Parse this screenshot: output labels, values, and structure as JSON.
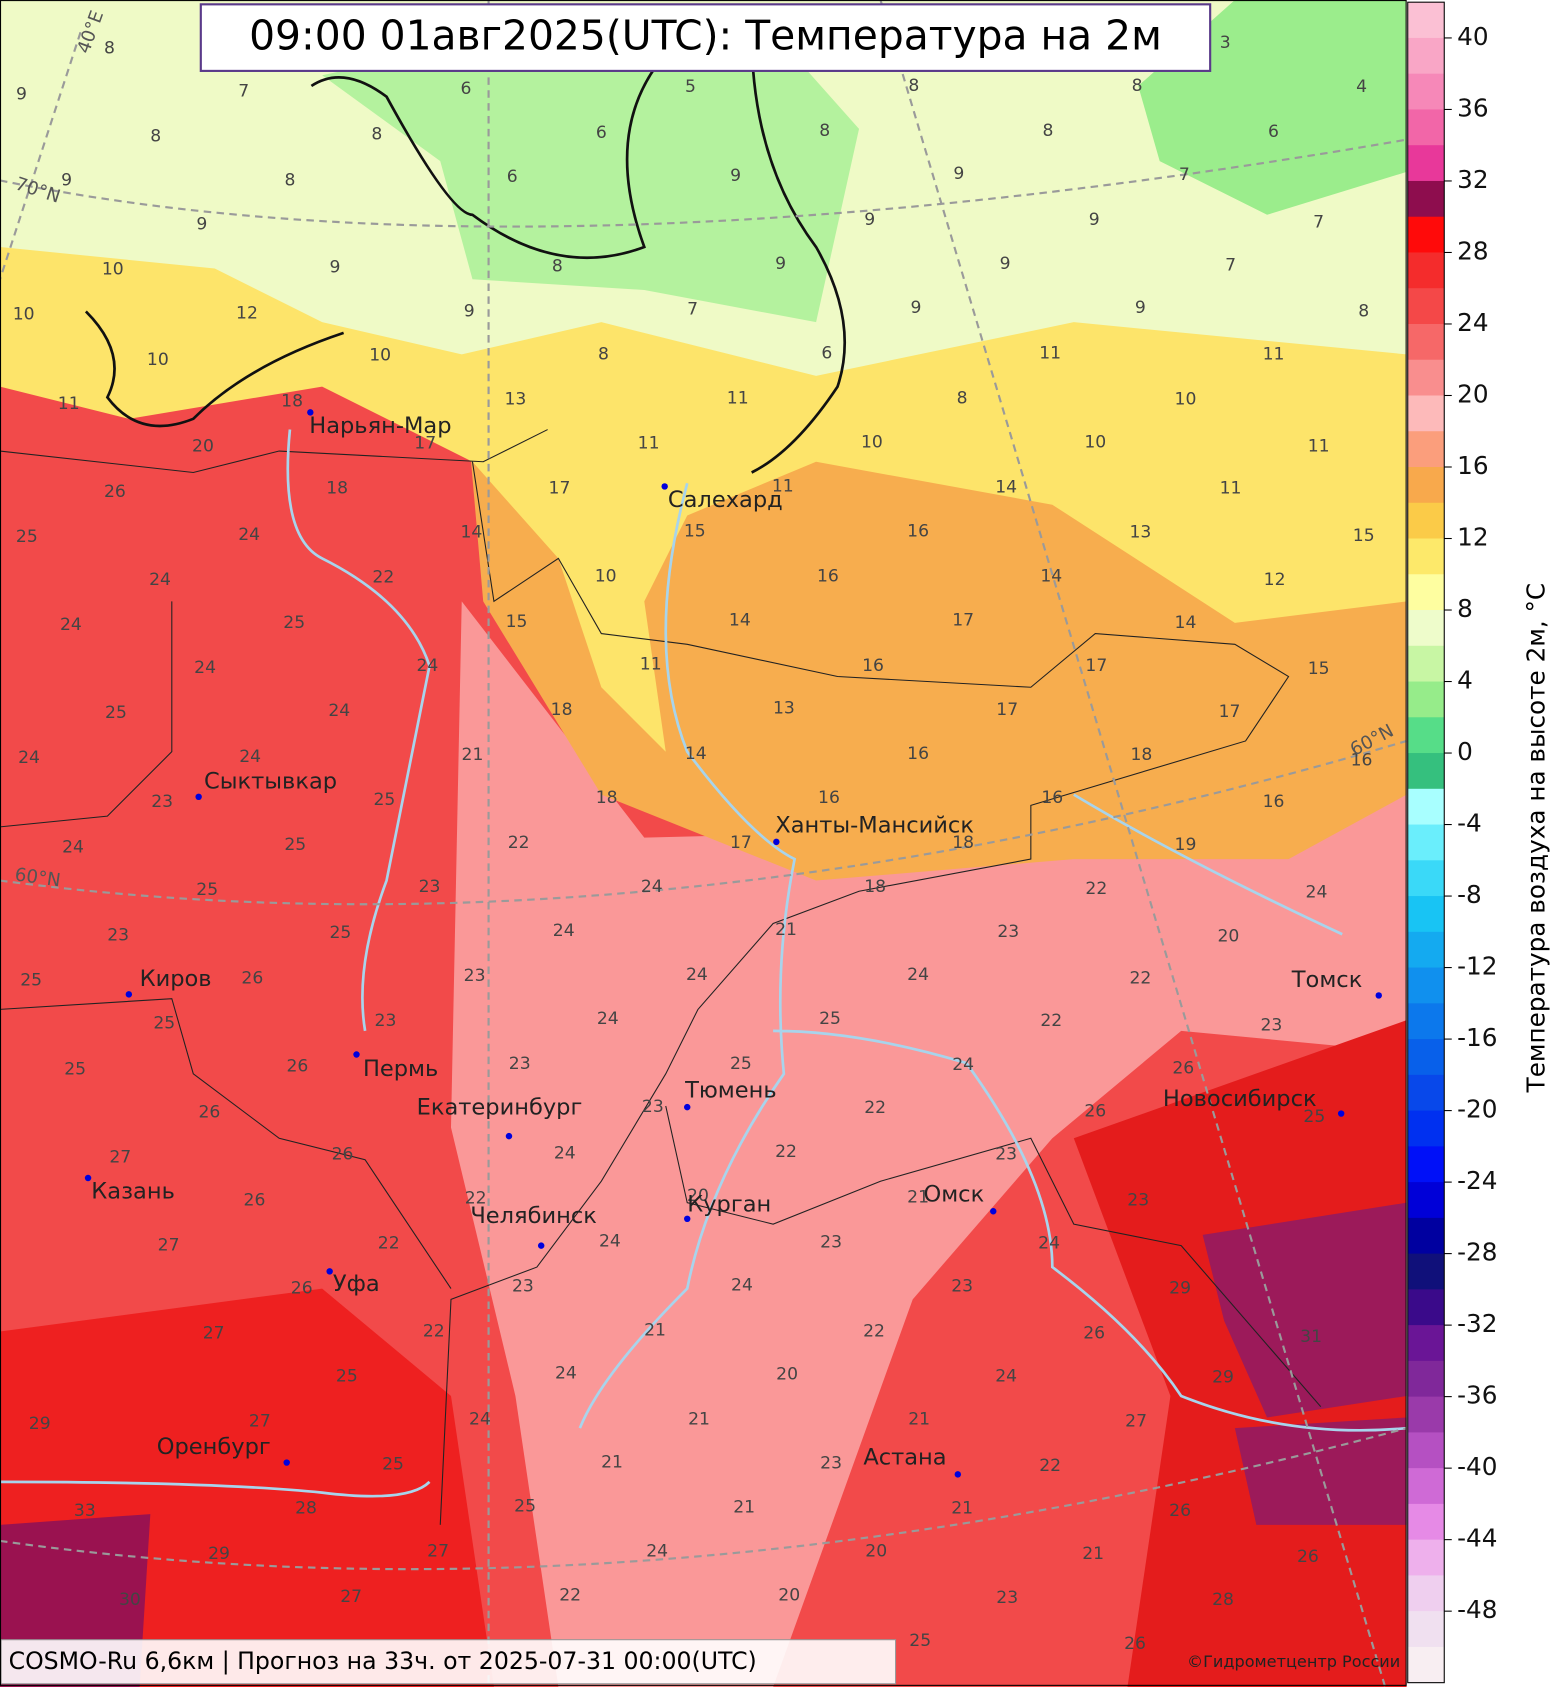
{
  "title": "09:00 01авг2025(UTC): Температура на 2м",
  "footer": "COSMO-Ru 6,6км | Прогноз на  33ч. от 2025-07-31 00:00(UTC)",
  "copyright": "©Гидрометцентр России",
  "graticule_labels": [
    "40°E",
    "70°N",
    "60°N",
    "60°N"
  ],
  "cities": [
    "Нарьян-Мар",
    "Салехард",
    "Сыктывкар",
    "Ханты-Мансийск",
    "Киров",
    "Томск",
    "Пермь",
    "Тюмень",
    "Екатеринбург",
    "Новосибирск",
    "Казань",
    "Омск",
    "Курган",
    "Челябинск",
    "Уфа",
    "Оренбург",
    "Астана"
  ],
  "temperatures": [
    8,
    9,
    7,
    6,
    5,
    8,
    8,
    4,
    3,
    8,
    8,
    6,
    8,
    8,
    6,
    9,
    8,
    6,
    9,
    9,
    7,
    9,
    9,
    9,
    7,
    10,
    9,
    8,
    9,
    9,
    7,
    10,
    12,
    9,
    7,
    9,
    9,
    8,
    10,
    10,
    8,
    6,
    11,
    11,
    11,
    18,
    13,
    11,
    8,
    10,
    20,
    17,
    11,
    10,
    10,
    11,
    26,
    18,
    17,
    11,
    14,
    11,
    25,
    24,
    14,
    15,
    16,
    13,
    15,
    24,
    22,
    10,
    16,
    14,
    12,
    24,
    25,
    15,
    14,
    17,
    14,
    24,
    24,
    11,
    16,
    17,
    15,
    25,
    24,
    18,
    13,
    17,
    17,
    24,
    24,
    21,
    14,
    16,
    18,
    16,
    23,
    25,
    18,
    16,
    16,
    16,
    24,
    25,
    22,
    17,
    18,
    19,
    25,
    23,
    24,
    18,
    22,
    24,
    23,
    25,
    24,
    21,
    23,
    20,
    25,
    26,
    23,
    24,
    24,
    22,
    25,
    23,
    24,
    25,
    22,
    23,
    25,
    26,
    23,
    25,
    24,
    26,
    26,
    23,
    22,
    26,
    25,
    27,
    26,
    24,
    22,
    23,
    26,
    22,
    20,
    21,
    23,
    27,
    22,
    24,
    23,
    24,
    26,
    23,
    24,
    23,
    29,
    27,
    22,
    21,
    22,
    26,
    31,
    25,
    24,
    20,
    24,
    29,
    29,
    27,
    24,
    21,
    21,
    27,
    25,
    21,
    23,
    22,
    33,
    28,
    25,
    21,
    21,
    26,
    29,
    27,
    24,
    20,
    21,
    26,
    30,
    27,
    22,
    20,
    23,
    28,
    26,
    25
  ],
  "colorbar": {
    "label": "Температура воздуха на высоте 2м, °С",
    "clim": [
      -52,
      42
    ],
    "ticks": [
      40,
      36,
      32,
      28,
      24,
      20,
      16,
      12,
      8,
      4,
      0,
      -4,
      -8,
      -12,
      -16,
      -20,
      -24,
      -28,
      -32,
      -36,
      -40,
      -44,
      -48
    ],
    "colors": [
      "#fbc0d4",
      "#f9a6c6",
      "#f688b8",
      "#f266a8",
      "#e8389a",
      "#8e0d4e",
      "#ff0a0a",
      "#f42c2c",
      "#f44848",
      "#f66868",
      "#f98e8e",
      "#fdbaba",
      "#fb9e7c",
      "#f8a94c",
      "#fbcb48",
      "#fde96a",
      "#fefea0",
      "#eefccb",
      "#c8f6a4",
      "#96ec8a",
      "#56dd88",
      "#35c07e",
      "#a8ffff",
      "#6aeefc",
      "#3ad9f8",
      "#18c4f4",
      "#14aaf0",
      "#1090ee",
      "#0c78ec",
      "#0860ea",
      "#0848ea",
      "#0030f0",
      "#0010f8",
      "#0000d8",
      "#0000a0",
      "#10107a",
      "#3a0a8a",
      "#6a1596",
      "#80289a",
      "#9a3aaa",
      "#b550c2",
      "#cf6ad6",
      "#e68ae6",
      "#eeb0ec",
      "#efcfef",
      "#f0e0f0",
      "#f8eef2"
    ]
  }
}
